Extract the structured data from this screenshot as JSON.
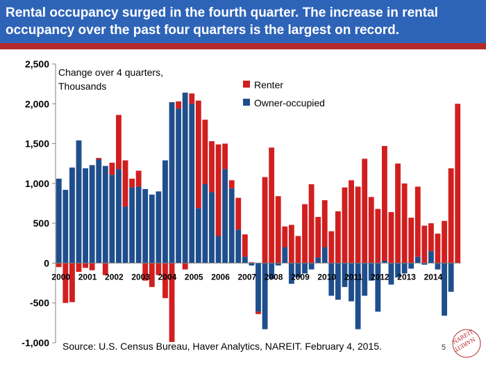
{
  "slide": {
    "title": "Rental occupancy surged in the fourth quarter. The increase in rental occupancy over the past four quarters is the largest on record.",
    "source": "Source: U.S. Census Bureau, Haver Analytics, NAREIT. February 4, 2015.",
    "page_number": "5",
    "logo_text": "NAREIT"
  },
  "colors": {
    "title_band": "#2e64b8",
    "title_stripe": "#b32a2a",
    "renter": "#d11f1f",
    "owner": "#1f4e8c"
  },
  "chart_data": {
    "type": "bar",
    "stacked": true,
    "annotation": "Change over 4 quarters,\nThousands",
    "ylim": [
      -1000,
      2500
    ],
    "yticks": [
      -1000,
      -500,
      0,
      500,
      1000,
      1500,
      2000,
      2500
    ],
    "ytick_labels": [
      "-1,000",
      "-500",
      "0",
      "500",
      "1,000",
      "1,500",
      "2,000",
      "2,500"
    ],
    "x_labels": [
      {
        "label": "2000",
        "index": 0
      },
      {
        "label": "2001",
        "index": 4
      },
      {
        "label": "2002",
        "index": 8
      },
      {
        "label": "2003",
        "index": 12
      },
      {
        "label": "2004",
        "index": 16
      },
      {
        "label": "2005",
        "index": 20
      },
      {
        "label": "2006",
        "index": 24
      },
      {
        "label": "2007",
        "index": 28
      },
      {
        "label": "2008",
        "index": 32
      },
      {
        "label": "2009",
        "index": 36
      },
      {
        "label": "2010",
        "index": 40
      },
      {
        "label": "2011",
        "index": 44
      },
      {
        "label": "2012",
        "index": 48
      },
      {
        "label": "2013",
        "index": 52
      },
      {
        "label": "2014",
        "index": 56
      }
    ],
    "legend_position": "top-right",
    "series": [
      {
        "name": "Renter",
        "color": "#d11f1f",
        "values": [
          -50,
          -500,
          -490,
          -110,
          -60,
          -90,
          20,
          -150,
          150,
          680,
          580,
          110,
          200,
          -220,
          -300,
          -150,
          -440,
          -990,
          90,
          -80,
          130,
          1350,
          810,
          640,
          1150,
          320,
          100,
          400,
          280,
          10,
          -30,
          1080,
          1450,
          840,
          260,
          480,
          340,
          740,
          990,
          510,
          590,
          400,
          650,
          950,
          1040,
          960,
          1310,
          830,
          680,
          1440,
          640,
          1250,
          1000,
          570,
          880,
          470,
          350,
          370,
          530,
          1190,
          2000
        ]
      },
      {
        "name": "Owner-occupied",
        "color": "#1f4e8c",
        "values": [
          1060,
          920,
          1200,
          1540,
          1190,
          1230,
          1300,
          1220,
          1110,
          1180,
          710,
          950,
          960,
          930,
          860,
          900,
          1290,
          2020,
          1940,
          2140,
          2000,
          690,
          990,
          890,
          340,
          1180,
          940,
          420,
          80,
          -30,
          -610,
          -830,
          -200,
          -30,
          200,
          -260,
          -180,
          -130,
          -80,
          70,
          200,
          -410,
          -460,
          -300,
          -480,
          -830,
          -410,
          -220,
          -610,
          30,
          -270,
          -180,
          -130,
          -70,
          80,
          -20,
          150,
          -80,
          -660,
          -360,
          0
        ]
      }
    ]
  }
}
